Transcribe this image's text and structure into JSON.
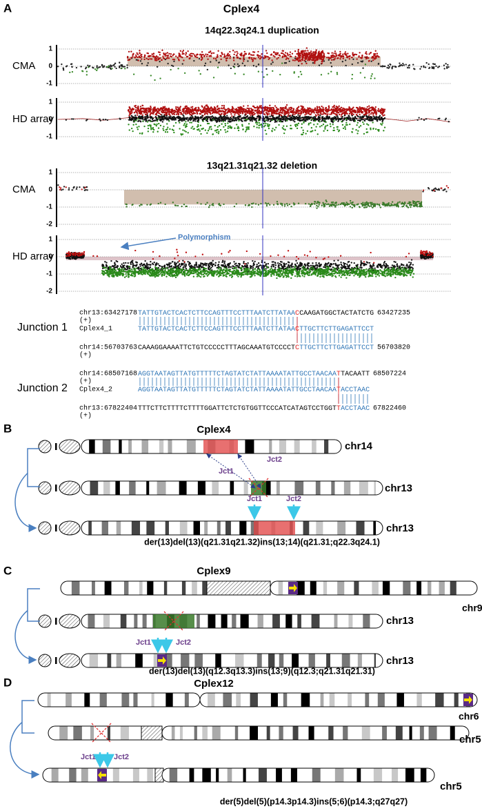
{
  "panels": {
    "a": {
      "label": "A",
      "title": "Cplex4",
      "sections": [
        {
          "title": "14q22.3q24.1 duplication",
          "plots": [
            {
              "label": "CMA",
              "yticks": [
                1,
                0,
                -1
              ]
            },
            {
              "label": "HD array",
              "yticks": [
                1,
                0,
                -1
              ]
            }
          ]
        },
        {
          "title": "13q21.31q21.32 deletion",
          "plots": [
            {
              "label": "CMA",
              "yticks": [
                1,
                0,
                -1,
                -2
              ]
            },
            {
              "label": "HD array",
              "yticks": [
                1,
                0,
                -1,
                -2
              ]
            }
          ]
        }
      ],
      "annotation": "Polymorphism",
      "junctions": [
        {
          "label": "Junction 1",
          "rows": [
            {
              "name": "chr13:63427178",
              "strand": "(+)",
              "end": "63427235",
              "seq": [
                {
                  "text": "TATTGTACTCACTCTTCCAGTTTCCTTTAATCTTATAA",
                  "color": "#2e75b6"
                },
                {
                  "text": "C",
                  "color": "#e02020"
                },
                {
                  "text": "CAAGATGGCTACTATCTG",
                  "color": "#000000"
                }
              ]
            },
            {
              "name": "Cplex4_1",
              "seq": [
                {
                  "text": "TATTGTACTCACTCTTCCAGTTTCCTTTAATCTTATAA",
                  "color": "#2e75b6"
                },
                {
                  "text": "C",
                  "color": "#e02020"
                },
                {
                  "text": "TTGCTTCTTGAGATTCCT",
                  "color": "#2e75b6"
                }
              ]
            },
            {
              "name": "chr14:56703763",
              "strand": "(+)",
              "end": "56703820",
              "seq": [
                {
                  "text": "CAAAGGAAAATTCTGTCCCCCTTTAGCAAATGTCCCCT",
                  "color": "#000000"
                },
                {
                  "text": "C",
                  "color": "#e02020"
                },
                {
                  "text": "TTGCTTCTTGAGATTCCT",
                  "color": "#2e75b6"
                }
              ]
            }
          ]
        },
        {
          "label": "Junction 2",
          "rows": [
            {
              "name": "chr14:68507168",
              "strand": "(+)",
              "end": "68507224",
              "seq": [
                {
                  "text": "AGGTAATAGTTATGTTTTTCTAGTATCTATTAAAATATTGCCTAACAA",
                  "color": "#2e75b6"
                },
                {
                  "text": "T",
                  "color": "#e02020"
                },
                {
                  "text": "TACAATT",
                  "color": "#000000"
                }
              ]
            },
            {
              "name": "Cplex4_2",
              "seq": [
                {
                  "text": "AGGTAATAGTTATGTTTTTCTAGTATCTATTAAAATATTGCCTAACAA",
                  "color": "#2e75b6"
                },
                {
                  "text": "T",
                  "color": "#e02020"
                },
                {
                  "text": "ACCTAAC",
                  "color": "#2e75b6"
                }
              ]
            },
            {
              "name": "chr13:67822404",
              "strand": "(+)",
              "end": "67822460",
              "seq": [
                {
                  "text": "TTTCTTCTTTTCTTTTGGATTCTCTGTGGTTCCCATCATAGTCCTGGT",
                  "color": "#000000"
                },
                {
                  "text": "T",
                  "color": "#e02020"
                },
                {
                  "text": "ACCTAAC",
                  "color": "#2e75b6"
                }
              ]
            }
          ]
        }
      ]
    },
    "b": {
      "label": "B",
      "title": "Cplex4",
      "chromosomes": [
        "chr14",
        "chr13",
        "chr13"
      ],
      "junctions": [
        "Jct1",
        "Jct2",
        "Jct1",
        "Jct2"
      ],
      "karyotype": "der(13)del(13)(q21.31q21.32)ins(13;14)(q21.31;q22.3q24.1)"
    },
    "c": {
      "label": "C",
      "title": "Cplex9",
      "chromosomes": [
        "chr9",
        "chr13",
        "chr13"
      ],
      "junctions": [
        "Jct1",
        "Jct2"
      ],
      "karyotype": "der(13)del(13)(q12.3q13.3)ins(13;9)(q12.3;q21.31q21.31)"
    },
    "d": {
      "label": "D",
      "title": "Cplex12",
      "chromosomes": [
        "chr6",
        "chr5",
        "chr5"
      ],
      "junctions": [
        "Jct1",
        "Jct2"
      ],
      "karyotype": "der(5)del(5)(p14.3p14.3)ins(5;6)(p14.3;q27q27)"
    }
  }
}
